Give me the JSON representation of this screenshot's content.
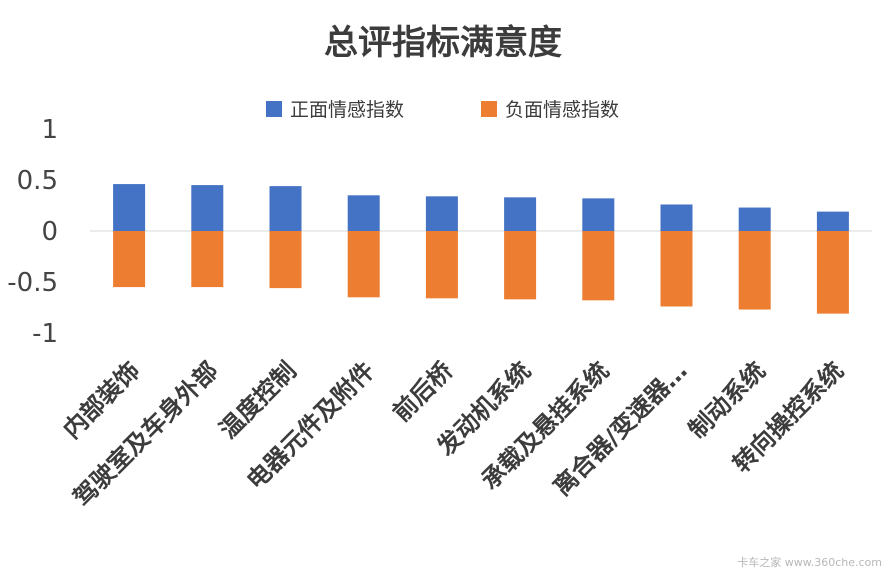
{
  "chart_data": {
    "type": "bar",
    "title": "总评指标满意度",
    "categories": [
      "内部装饰",
      "驾驶室及车身外部",
      "温度控制",
      "电器元件及附件",
      "前后桥",
      "发动机系统",
      "承载及悬挂系统",
      "离合器/变速器…",
      "制动系统",
      "转向操控系统"
    ],
    "series": [
      {
        "name": "正面情感指数",
        "color": "#4472C4",
        "values": [
          0.46,
          0.45,
          0.44,
          0.35,
          0.34,
          0.33,
          0.32,
          0.26,
          0.23,
          0.19
        ]
      },
      {
        "name": "负面情感指数",
        "color": "#ED7D31",
        "values": [
          -0.55,
          -0.55,
          -0.56,
          -0.65,
          -0.66,
          -0.67,
          -0.68,
          -0.74,
          -0.77,
          -0.81
        ]
      }
    ],
    "ylim": [
      -1,
      1
    ],
    "yticks": [
      "1",
      "0.5",
      "0",
      "-0.5",
      "-1"
    ],
    "ytick_values": [
      1,
      0.5,
      0,
      -0.5,
      -1
    ],
    "grid": false,
    "legend_position": "top"
  },
  "watermark": "卡车之家 www.360che.com"
}
